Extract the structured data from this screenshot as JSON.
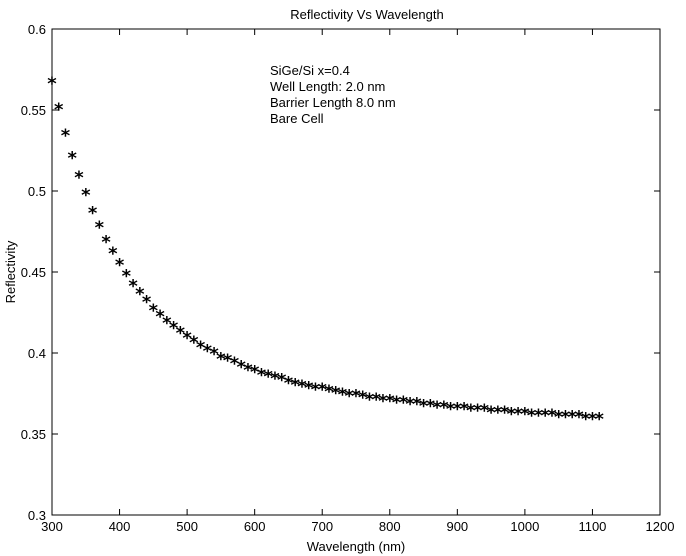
{
  "chart_data": {
    "type": "scatter",
    "title": "Reflectivity Vs Wavelength",
    "xlabel": "Wavelength (nm)",
    "ylabel": "Reflectivity",
    "xlim": [
      300,
      1200
    ],
    "ylim": [
      0.3,
      0.6
    ],
    "xticks": [
      "300",
      "400",
      "500",
      "600",
      "700",
      "800",
      "900",
      "1000",
      "1100",
      "1200"
    ],
    "yticks": [
      "0.3",
      "0.35",
      "0.4",
      "0.45",
      "0.5",
      "0.55",
      "0.6"
    ],
    "grid": false,
    "annotations": [
      "SiGe/Si x=0.4",
      "Well Length: 2.0 nm",
      "Barrier Length 8.0 nm",
      "Bare Cell"
    ],
    "marker": "*",
    "x": [
      300,
      310,
      320,
      330,
      340,
      350,
      360,
      370,
      380,
      390,
      400,
      410,
      420,
      430,
      440,
      450,
      460,
      470,
      480,
      490,
      500,
      510,
      520,
      530,
      540,
      550,
      560,
      570,
      580,
      590,
      600,
      610,
      620,
      630,
      640,
      650,
      660,
      670,
      680,
      690,
      700,
      710,
      720,
      730,
      740,
      750,
      760,
      770,
      780,
      790,
      800,
      810,
      820,
      830,
      840,
      850,
      860,
      870,
      880,
      890,
      900,
      910,
      920,
      930,
      940,
      950,
      960,
      970,
      980,
      990,
      1000,
      1010,
      1020,
      1030,
      1040,
      1050,
      1060,
      1070,
      1080,
      1090,
      1100,
      1110
    ],
    "y": [
      0.567,
      0.551,
      0.535,
      0.521,
      0.509,
      0.498,
      0.487,
      0.478,
      0.469,
      0.462,
      0.455,
      0.448,
      0.442,
      0.437,
      0.432,
      0.427,
      0.423,
      0.419,
      0.416,
      0.413,
      0.41,
      0.407,
      0.404,
      0.402,
      0.4,
      0.397,
      0.396,
      0.394,
      0.392,
      0.39,
      0.389,
      0.387,
      0.386,
      0.385,
      0.384,
      0.382,
      0.381,
      0.38,
      0.379,
      0.378,
      0.378,
      0.377,
      0.376,
      0.375,
      0.374,
      0.374,
      0.373,
      0.372,
      0.372,
      0.371,
      0.371,
      0.37,
      0.37,
      0.369,
      0.369,
      0.368,
      0.368,
      0.367,
      0.367,
      0.366,
      0.366,
      0.366,
      0.365,
      0.365,
      0.365,
      0.364,
      0.364,
      0.364,
      0.363,
      0.363,
      0.363,
      0.362,
      0.362,
      0.362,
      0.362,
      0.361,
      0.361,
      0.361,
      0.361,
      0.36,
      0.36,
      0.36
    ]
  }
}
